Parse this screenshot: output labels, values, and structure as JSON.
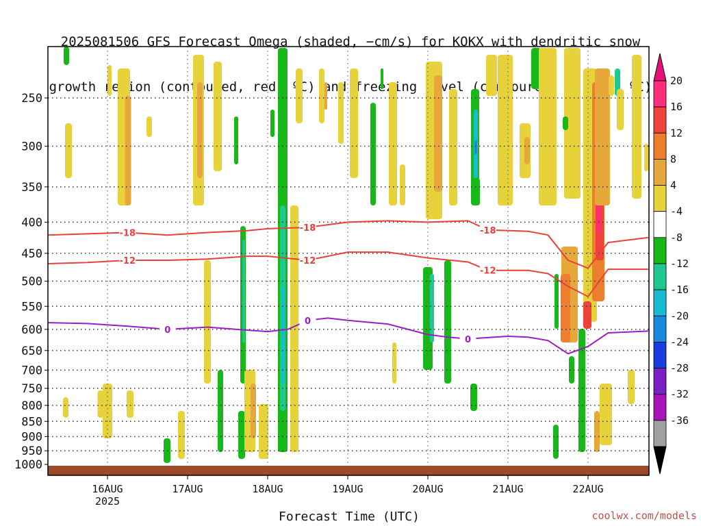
{
  "title": {
    "line1": "2025081506 GFS Forecast Omega (shaded, −cm/s) for KOKX with dendritic snow",
    "line2": "growth region (contoured, red, ºC) and freezing level (contoured, purple, ºC)"
  },
  "credit": "coolwx.com/models",
  "chart_data": {
    "type": "heatmap",
    "title": "2025081506 GFS Forecast Omega (shaded, −cm/s) for KOKX with dendritic snow growth region (contoured, red, ºC) and freezing level (contoured, purple, ºC)",
    "xlabel": "Forecast Time (UTC)",
    "ylabel": "",
    "y_scale": "log-pressure",
    "y_reversed": true,
    "xlim": [
      "2025-08-15 06Z",
      "2025-08-22 18Z"
    ],
    "ylim": [
      1000,
      200
    ],
    "x_ticks": [
      {
        "label": "16AUG",
        "sublabel": "2025"
      },
      {
        "label": "17AUG",
        "sublabel": ""
      },
      {
        "label": "18AUG",
        "sublabel": ""
      },
      {
        "label": "19AUG",
        "sublabel": ""
      },
      {
        "label": "20AUG",
        "sublabel": ""
      },
      {
        "label": "21AUG",
        "sublabel": ""
      },
      {
        "label": "22AUG",
        "sublabel": ""
      }
    ],
    "y_ticks": [
      250,
      300,
      350,
      400,
      450,
      500,
      550,
      600,
      650,
      700,
      750,
      800,
      850,
      900,
      950,
      1000
    ],
    "grid": true,
    "colorbar": {
      "labels": [
        20,
        16,
        12,
        8,
        4,
        -4,
        -8,
        -12,
        -16,
        -20,
        -24,
        -28,
        -32,
        -36
      ],
      "colors": [
        "#ff2d7a",
        "#f0413a",
        "#ec7e2e",
        "#e6a83a",
        "#e8d23c",
        "#ffffff",
        "#18b818",
        "#1ec88e",
        "#18bcd2",
        "#1a8ae0",
        "#1a3ce0",
        "#7a1ec8",
        "#a814b8",
        "#a0a0a0"
      ],
      "top_arrow_color": "#e8107a",
      "bottom_arrow_color": "#000000"
    },
    "contours": [
      {
        "label": "-18",
        "color": "#e8413a",
        "points": [
          [
            "15 06Z",
            420
          ],
          [
            "15 18Z",
            418
          ],
          [
            "16 06Z",
            416
          ],
          [
            "16 18Z",
            420
          ],
          [
            "17 06Z",
            416
          ],
          [
            "17 18Z",
            413
          ],
          [
            "18 00Z",
            410
          ],
          [
            "18 12Z",
            408
          ],
          [
            "19 00Z",
            400
          ],
          [
            "19 12Z",
            398
          ],
          [
            "20 00Z",
            400
          ],
          [
            "20 12Z",
            398
          ],
          [
            "20 18Z",
            412
          ],
          [
            "21 06Z",
            414
          ],
          [
            "21 12Z",
            420
          ],
          [
            "21 18Z",
            462
          ],
          [
            "22 00Z",
            476
          ],
          [
            "22 06Z",
            432
          ],
          [
            "22 18Z",
            424
          ]
        ]
      },
      {
        "label": "-12",
        "color": "#e8413a",
        "points": [
          [
            "15 06Z",
            468
          ],
          [
            "15 18Z",
            466
          ],
          [
            "16 06Z",
            462
          ],
          [
            "16 18Z",
            462
          ],
          [
            "17 06Z",
            460
          ],
          [
            "17 18Z",
            455
          ],
          [
            "18 00Z",
            455
          ],
          [
            "18 12Z",
            462
          ],
          [
            "19 00Z",
            448
          ],
          [
            "19 12Z",
            448
          ],
          [
            "20 00Z",
            458
          ],
          [
            "20 12Z",
            465
          ],
          [
            "20 18Z",
            480
          ],
          [
            "21 06Z",
            480
          ],
          [
            "21 12Z",
            486
          ],
          [
            "21 18Z",
            510
          ],
          [
            "22 00Z",
            530
          ],
          [
            "22 06Z",
            478
          ],
          [
            "22 18Z",
            478
          ]
        ]
      },
      {
        "label": "0",
        "color": "#9b1cc8",
        "points": [
          [
            "15 06Z",
            585
          ],
          [
            "15 18Z",
            587
          ],
          [
            "16 06Z",
            593
          ],
          [
            "16 18Z",
            600
          ],
          [
            "17 06Z",
            595
          ],
          [
            "17 18Z",
            602
          ],
          [
            "18 00Z",
            605
          ],
          [
            "18 06Z",
            600
          ],
          [
            "18 12Z",
            580
          ],
          [
            "18 18Z",
            575
          ],
          [
            "19 00Z",
            580
          ],
          [
            "19 12Z",
            588
          ],
          [
            "20 00Z",
            612
          ],
          [
            "20 06Z",
            618
          ],
          [
            "20 12Z",
            622
          ],
          [
            "21 00Z",
            616
          ],
          [
            "21 06Z",
            618
          ],
          [
            "21 12Z",
            626
          ],
          [
            "21 18Z",
            658
          ],
          [
            "22 00Z",
            640
          ],
          [
            "22 06Z",
            608
          ],
          [
            "22 18Z",
            604
          ]
        ]
      }
    ],
    "omega_features": [
      {
        "x": "18 06Z",
        "p_top": 370,
        "p_bottom": 940,
        "value": -12
      },
      {
        "x": "20 12Z",
        "p_top": 260,
        "p_bottom": 350,
        "value": -20
      },
      {
        "x": "22 06Z",
        "p_top": 250,
        "p_bottom": 600,
        "value": 20
      },
      {
        "x": "22 00Z",
        "p_top": 440,
        "p_bottom": 620,
        "value": 12
      },
      {
        "x": "21 06Z",
        "p_top": 280,
        "p_bottom": 360,
        "value": 12
      }
    ]
  }
}
